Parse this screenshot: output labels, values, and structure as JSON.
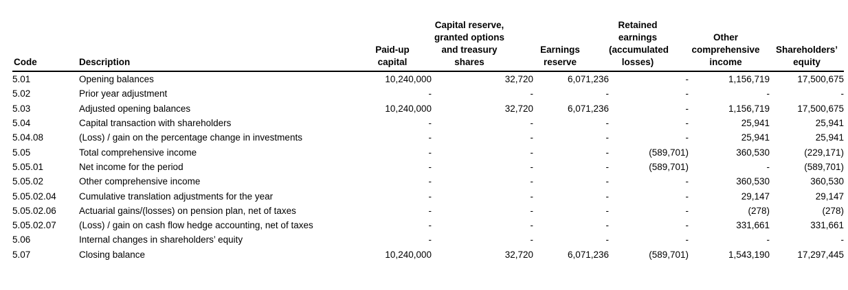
{
  "document": {
    "type": "statement-of-changes-in-shareholders-equity"
  },
  "table": {
    "columns": [
      {
        "id": "code",
        "label": "Code"
      },
      {
        "id": "description",
        "label": "Description"
      },
      {
        "id": "paid-up-capital",
        "label": "Paid-up\ncapital"
      },
      {
        "id": "capital-reserve",
        "label": "Capital reserve,\ngranted options\nand treasury shares"
      },
      {
        "id": "earnings-reserve",
        "label": "Earnings\nreserve"
      },
      {
        "id": "retained-earnings",
        "label": "Retained\nearnings\n(accumulated\nlosses)"
      },
      {
        "id": "other-comprehensive-income",
        "label": "Other\ncomprehensive\nincome"
      },
      {
        "id": "shareholders-equity",
        "label": "Shareholders’\nequity"
      }
    ],
    "rows": [
      {
        "code": "5.01",
        "description": "Opening balances",
        "values": [
          "10,240,000",
          "32,720",
          "6,071,236",
          "-",
          "1,156,719",
          "17,500,675"
        ]
      },
      {
        "code": "5.02",
        "description": "Prior year adjustment",
        "values": [
          "-",
          "-",
          "-",
          "-",
          "-",
          "-"
        ]
      },
      {
        "code": "5.03",
        "description": "Adjusted opening balances",
        "values": [
          "10,240,000",
          "32,720",
          "6,071,236",
          "-",
          "1,156,719",
          "17,500,675"
        ]
      },
      {
        "code": "5.04",
        "description": "Capital transaction with shareholders",
        "values": [
          "-",
          "-",
          "-",
          "-",
          "25,941",
          "25,941"
        ]
      },
      {
        "code": "5.04.08",
        "description": "(Loss) / gain on the percentage change in investments",
        "values": [
          "-",
          "-",
          "-",
          "-",
          "25,941",
          "25,941"
        ]
      },
      {
        "code": "5.05",
        "description": "Total comprehensive income",
        "values": [
          "-",
          "-",
          "-",
          "(589,701)",
          "360,530",
          "(229,171)"
        ]
      },
      {
        "code": "5.05.01",
        "description": "Net income for the period",
        "values": [
          "-",
          "-",
          "-",
          "(589,701)",
          "-",
          "(589,701)"
        ]
      },
      {
        "code": "5.05.02",
        "description": "Other comprehensive income",
        "values": [
          "-",
          "-",
          "-",
          "-",
          "360,530",
          "360,530"
        ]
      },
      {
        "code": "5.05.02.04",
        "description": "Cumulative translation adjustments for the year",
        "values": [
          "-",
          "-",
          "-",
          "-",
          "29,147",
          "29,147"
        ]
      },
      {
        "code": "5.05.02.06",
        "description": "Actuarial gains/(losses) on pension plan, net of taxes",
        "values": [
          "-",
          "-",
          "-",
          "-",
          "(278)",
          "(278)"
        ]
      },
      {
        "code": "5.05.02.07",
        "description": "(Loss) / gain on cash flow hedge accounting, net of taxes",
        "values": [
          "-",
          "-",
          "-",
          "-",
          "331,661",
          "331,661"
        ]
      },
      {
        "code": "5.06",
        "description": "Internal changes in shareholders’ equity",
        "values": [
          "-",
          "-",
          "-",
          "-",
          "-",
          "-"
        ]
      },
      {
        "code": "5.07",
        "description": "Closing balance",
        "values": [
          "10,240,000",
          "32,720",
          "6,071,236",
          "(589,701)",
          "1,543,190",
          "17,297,445"
        ]
      }
    ],
    "colors": {
      "text": "#000000",
      "background": "#ffffff",
      "rule": "#000000"
    }
  }
}
